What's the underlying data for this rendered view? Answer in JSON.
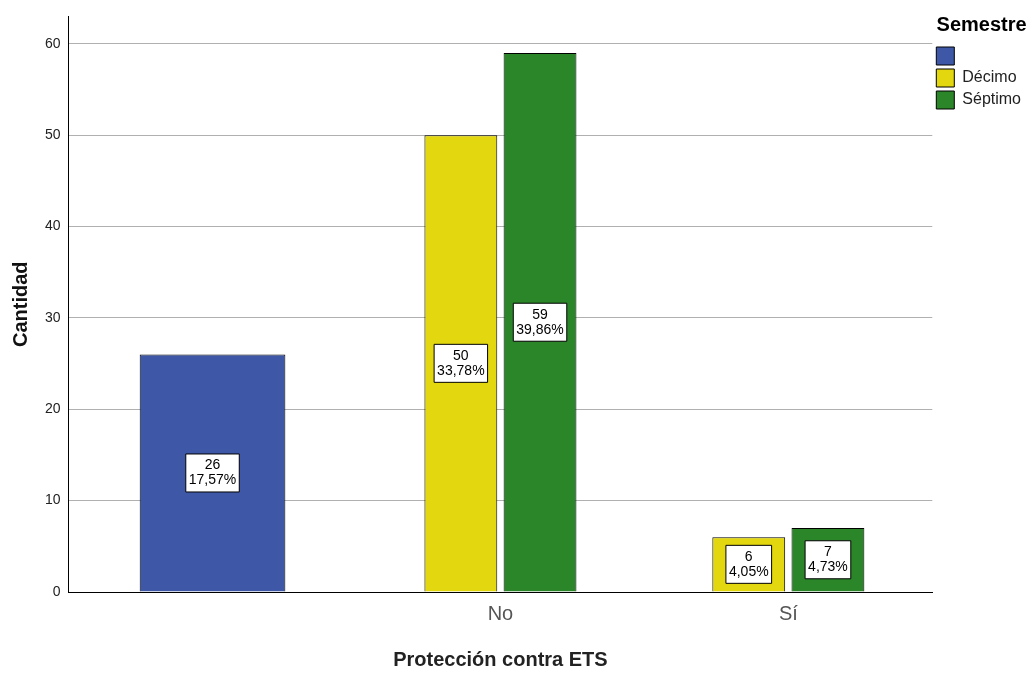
{
  "chart_data": {
    "type": "bar",
    "xlabel": "Protección contra ETS",
    "ylabel": "Cantidad",
    "legend_title": "Semestre",
    "categories": [
      null,
      "No",
      "Sí"
    ],
    "series": [
      {
        "color": "#3e58a7",
        "values": [
          26,
          null,
          null
        ],
        "value_labels": [
          "26\n17,57%",
          null,
          null
        ]
      },
      {
        "name": "Décimo",
        "color": "#e3d70f",
        "values": [
          null,
          50,
          6
        ],
        "value_labels": [
          null,
          "50\n33,78%",
          "6\n4,05%"
        ]
      },
      {
        "name": "Séptimo",
        "color": "#2b8529",
        "values": [
          null,
          59,
          7
        ],
        "value_labels": [
          null,
          "59\n39,86%",
          "7\n4,73%"
        ]
      }
    ],
    "ylim": [
      0,
      63
    ],
    "yticks": [
      0,
      10,
      20,
      30,
      40,
      50,
      60
    ],
    "grid": "y",
    "legend": "top right"
  }
}
